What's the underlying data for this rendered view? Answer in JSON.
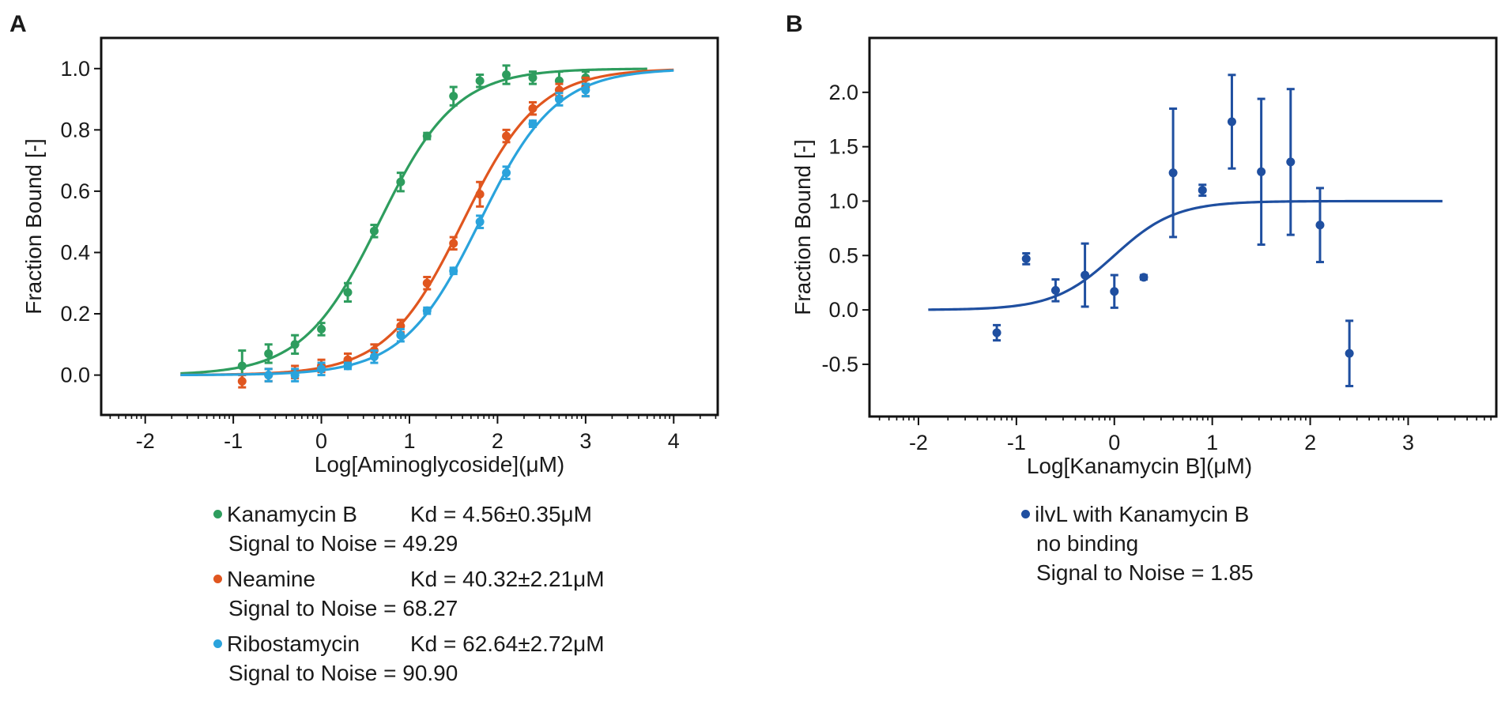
{
  "panels": {
    "a": {
      "letter": "A"
    },
    "b": {
      "letter": "B"
    }
  },
  "legend_a": [
    {
      "name": "Kanamycin B",
      "kd": "Kd = 4.56±0.35μM",
      "sn": "Signal to Noise = 49.29",
      "color": "#2e9d5e"
    },
    {
      "name": "Neamine",
      "kd": "Kd = 40.32±2.21μM",
      "sn": "Signal to Noise = 68.27",
      "color": "#e0561f"
    },
    {
      "name": "Ribostamycin",
      "kd": "Kd = 62.64±2.72μM",
      "sn": "Signal to Noise = 90.90",
      "color": "#2aa3dc"
    }
  ],
  "legend_b": {
    "name": "ilvL with Kanamycin B",
    "line2": "no binding",
    "sn": "Signal to Noise = 1.85",
    "color": "#1f4fa0"
  },
  "chart_data": [
    {
      "type": "scatter",
      "panel": "A",
      "xlabel": "Log[Aminoglycoside](μM)",
      "ylabel": "Fraction Bound [-]",
      "xlim": [
        -2.5,
        4.5
      ],
      "ylim": [
        -0.13,
        1.1
      ],
      "xticks": [
        -2,
        -1,
        0,
        1,
        2,
        3,
        4
      ],
      "xtick_labels": [
        "-2",
        "-1",
        "0",
        "1",
        "2",
        "3",
        "4"
      ],
      "yticks": [
        0.0,
        0.2,
        0.4,
        0.6,
        0.8,
        1.0
      ],
      "ytick_labels": [
        "0.0",
        "0.2",
        "0.4",
        "0.6",
        "0.8",
        "1.0"
      ],
      "fit_x_range": [
        -1.6,
        4.0
      ],
      "series": [
        {
          "name": "Kanamycin B",
          "color": "#2e9d5e",
          "log_kd": 0.659,
          "fit_x_end": 3.7,
          "x": [
            -0.9,
            -0.6,
            -0.3,
            0.0,
            0.3,
            0.6,
            0.9,
            1.2,
            1.5,
            1.8,
            2.1,
            2.4,
            2.7,
            3.0
          ],
          "y": [
            0.03,
            0.07,
            0.1,
            0.15,
            0.27,
            0.47,
            0.63,
            0.78,
            0.91,
            0.96,
            0.98,
            0.97,
            0.96,
            0.97
          ],
          "err": [
            0.05,
            0.03,
            0.03,
            0.02,
            0.03,
            0.02,
            0.03,
            0.01,
            0.03,
            0.02,
            0.03,
            0.02,
            0.03,
            0.02
          ]
        },
        {
          "name": "Neamine",
          "color": "#e0561f",
          "log_kd": 1.606,
          "fit_x_end": 4.0,
          "x": [
            -0.9,
            -0.6,
            -0.3,
            0.0,
            0.3,
            0.6,
            0.9,
            1.2,
            1.5,
            1.8,
            2.1,
            2.4,
            2.7,
            3.0
          ],
          "y": [
            -0.02,
            0.0,
            0.01,
            0.03,
            0.05,
            0.08,
            0.16,
            0.3,
            0.43,
            0.59,
            0.78,
            0.87,
            0.93,
            0.94
          ],
          "err": [
            0.02,
            0.02,
            0.02,
            0.02,
            0.02,
            0.02,
            0.02,
            0.02,
            0.02,
            0.04,
            0.02,
            0.02,
            0.02,
            0.03
          ]
        },
        {
          "name": "Ribostamycin",
          "color": "#2aa3dc",
          "log_kd": 1.797,
          "fit_x_end": 4.0,
          "x": [
            -0.6,
            -0.3,
            0.0,
            0.3,
            0.6,
            0.9,
            1.2,
            1.5,
            1.8,
            2.1,
            2.4,
            2.7,
            3.0
          ],
          "y": [
            0.0,
            0.0,
            0.02,
            0.03,
            0.06,
            0.13,
            0.21,
            0.34,
            0.5,
            0.66,
            0.82,
            0.9,
            0.93
          ],
          "err": [
            0.02,
            0.02,
            0.02,
            0.01,
            0.02,
            0.02,
            0.01,
            0.01,
            0.02,
            0.02,
            0.01,
            0.02,
            0.02
          ]
        }
      ]
    },
    {
      "type": "scatter",
      "panel": "B",
      "xlabel": "Log[Kanamycin B](μM)",
      "ylabel": "Fraction Bound [-]",
      "xlim": [
        -2.5,
        3.9
      ],
      "ylim": [
        -0.98,
        2.5
      ],
      "xticks": [
        -2,
        -1,
        0,
        1,
        2,
        3
      ],
      "xtick_labels": [
        "-2",
        "-1",
        "0",
        "1",
        "2",
        "3"
      ],
      "yticks": [
        -0.5,
        0.0,
        0.5,
        1.0,
        1.5,
        2.0
      ],
      "ytick_labels": [
        "-0.5",
        "0.0",
        "0.5",
        "1.0",
        "1.5",
        "2.0"
      ],
      "fit_x_range": [
        -1.9,
        3.35
      ],
      "series": [
        {
          "name": "ilvL with Kanamycin B",
          "color": "#1f4fa0",
          "log_kd": 0.0,
          "slope": 1.4,
          "x": [
            -1.2,
            -0.9,
            -0.6,
            -0.3,
            0.0,
            0.3,
            0.6,
            0.9,
            1.2,
            1.5,
            1.8,
            2.1,
            2.4
          ],
          "y": [
            -0.21,
            0.47,
            0.18,
            0.32,
            0.17,
            0.3,
            1.26,
            1.1,
            1.73,
            1.27,
            1.36,
            0.78,
            -0.4
          ],
          "err": [
            0.07,
            0.05,
            0.1,
            0.29,
            0.15,
            0.02,
            0.59,
            0.05,
            0.43,
            0.67,
            0.67,
            0.34,
            0.3
          ]
        }
      ]
    }
  ]
}
